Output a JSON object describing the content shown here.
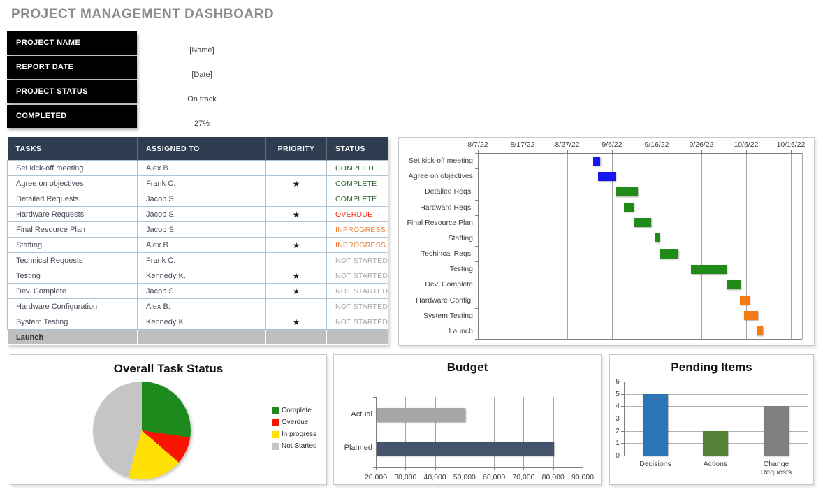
{
  "header": {
    "title": "PROJECT MANAGEMENT DASHBOARD"
  },
  "info": {
    "items": [
      {
        "label": "PROJECT NAME",
        "value": "[Name]"
      },
      {
        "label": "REPORT DATE",
        "value": "[Date]"
      },
      {
        "label": "PROJECT STATUS",
        "value": "On track"
      },
      {
        "label": "COMPLETED",
        "value": "27%"
      }
    ]
  },
  "task_table": {
    "columns": [
      "TASKS",
      "ASSIGNED TO",
      "PRIORITY",
      "STATUS"
    ],
    "rows": [
      {
        "task": "Set kick-off meeting",
        "assigned": "Alex B.",
        "priority": "",
        "status": "COMPLETE"
      },
      {
        "task": "Agree on objectives",
        "assigned": "Frank C.",
        "priority": "★",
        "status": "COMPLETE"
      },
      {
        "task": "Detailed Requests",
        "assigned": "Jacob S.",
        "priority": "",
        "status": "COMPLETE"
      },
      {
        "task": "Hardware Requests",
        "assigned": "Jacob S.",
        "priority": "★",
        "status": "OVERDUE"
      },
      {
        "task": "Final Resource Plan",
        "assigned": "Jacob S.",
        "priority": "",
        "status": "INPROGRESS"
      },
      {
        "task": "Staffing",
        "assigned": "Alex B.",
        "priority": "★",
        "status": "INPROGRESS"
      },
      {
        "task": "Technical Requests",
        "assigned": "Frank C.",
        "priority": "",
        "status": "NOT STARTED"
      },
      {
        "task": "Testing",
        "assigned": "Kennedy K.",
        "priority": "★",
        "status": "NOT STARTED"
      },
      {
        "task": "Dev. Complete",
        "assigned": "Jacob S.",
        "priority": "★",
        "status": "NOT STARTED"
      },
      {
        "task": "Hardware Configuration",
        "assigned": "Alex B.",
        "priority": "",
        "status": "NOT STARTED"
      },
      {
        "task": "System Testing",
        "assigned": "Kennedy K.",
        "priority": "★",
        "status": "NOT STARTED"
      }
    ],
    "footer_row": "Launch",
    "status_colors": {
      "COMPLETE": "#2f6336",
      "OVERDUE": "#ff2d16",
      "INPROGRESS": "#ed7d31",
      "NOT STARTED": "#a6a6a6"
    }
  },
  "chart_data": [
    {
      "type": "gantt",
      "x_ticks": [
        "8/7/22",
        "8/17/22",
        "8/27/22",
        "9/6/22",
        "9/16/22",
        "9/26/22",
        "10/6/22",
        "10/16/22"
      ],
      "tick_interval_days": 10,
      "axis_span_days": 72.5,
      "tasks": [
        {
          "label": "Set kick-off meeting",
          "start_day": 25.8,
          "duration_days": 1.5,
          "color": "blue"
        },
        {
          "label": "Agree on objectives",
          "start_day": 26.8,
          "duration_days": 4.0,
          "color": "blue"
        },
        {
          "label": "Detailed Reqs.",
          "start_day": 30.8,
          "duration_days": 5.0,
          "color": "green"
        },
        {
          "label": "Hardward Reqs.",
          "start_day": 32.7,
          "duration_days": 2.2,
          "color": "green"
        },
        {
          "label": "Final Resource Plan",
          "start_day": 34.8,
          "duration_days": 4.0,
          "color": "green"
        },
        {
          "label": "Staffing",
          "start_day": 39.7,
          "duration_days": 1.0,
          "color": "green"
        },
        {
          "label": "Techincal Reqs.",
          "start_day": 40.7,
          "duration_days": 4.2,
          "color": "green"
        },
        {
          "label": "Testing",
          "start_day": 47.6,
          "duration_days": 8.1,
          "color": "green"
        },
        {
          "label": "Dev. Complete",
          "start_day": 55.7,
          "duration_days": 3.1,
          "color": "green"
        },
        {
          "label": "Hardware Config.",
          "start_day": 58.6,
          "duration_days": 2.2,
          "color": "orange"
        },
        {
          "label": "System Testing",
          "start_day": 59.6,
          "duration_days": 3.1,
          "color": "orange"
        },
        {
          "label": "Launch",
          "start_day": 62.4,
          "duration_days": 1.4,
          "color": "orange"
        }
      ],
      "bar_colors": {
        "blue": "#1616f0",
        "green": "#208b18",
        "orange": "#f57a14"
      }
    },
    {
      "type": "pie",
      "title": "Overall Task Status",
      "legend_position": "right",
      "slices": [
        {
          "label": "Complete",
          "value": 3,
          "color": "#1e8a1e"
        },
        {
          "label": "Overdue",
          "value": 1,
          "color": "#f81400"
        },
        {
          "label": "In progress",
          "value": 2,
          "color": "#ffe105"
        },
        {
          "label": "Not Started",
          "value": 5,
          "color": "#c5c5c5"
        }
      ]
    },
    {
      "type": "bar",
      "orientation": "horizontal",
      "title": "Budget",
      "categories": [
        "Actual",
        "Planned"
      ],
      "values": [
        50000,
        80000
      ],
      "colors": [
        "#a6a6a6",
        "#44546a"
      ],
      "xlim": [
        20000,
        90000
      ],
      "x_ticks": [
        "20,000",
        "30,000",
        "40,000",
        "50,000",
        "60,000",
        "70,000",
        "80,000",
        "90,000"
      ],
      "grid": true
    },
    {
      "type": "bar",
      "orientation": "vertical",
      "title": "Pending Items",
      "categories": [
        "Decisions",
        "Actions",
        "Change Requests"
      ],
      "values": [
        5,
        2,
        4
      ],
      "colors": [
        "#2e75b6",
        "#538135",
        "#7f7f7f"
      ],
      "ylim": [
        0,
        6
      ],
      "y_tick_step": 1,
      "grid": true
    }
  ]
}
